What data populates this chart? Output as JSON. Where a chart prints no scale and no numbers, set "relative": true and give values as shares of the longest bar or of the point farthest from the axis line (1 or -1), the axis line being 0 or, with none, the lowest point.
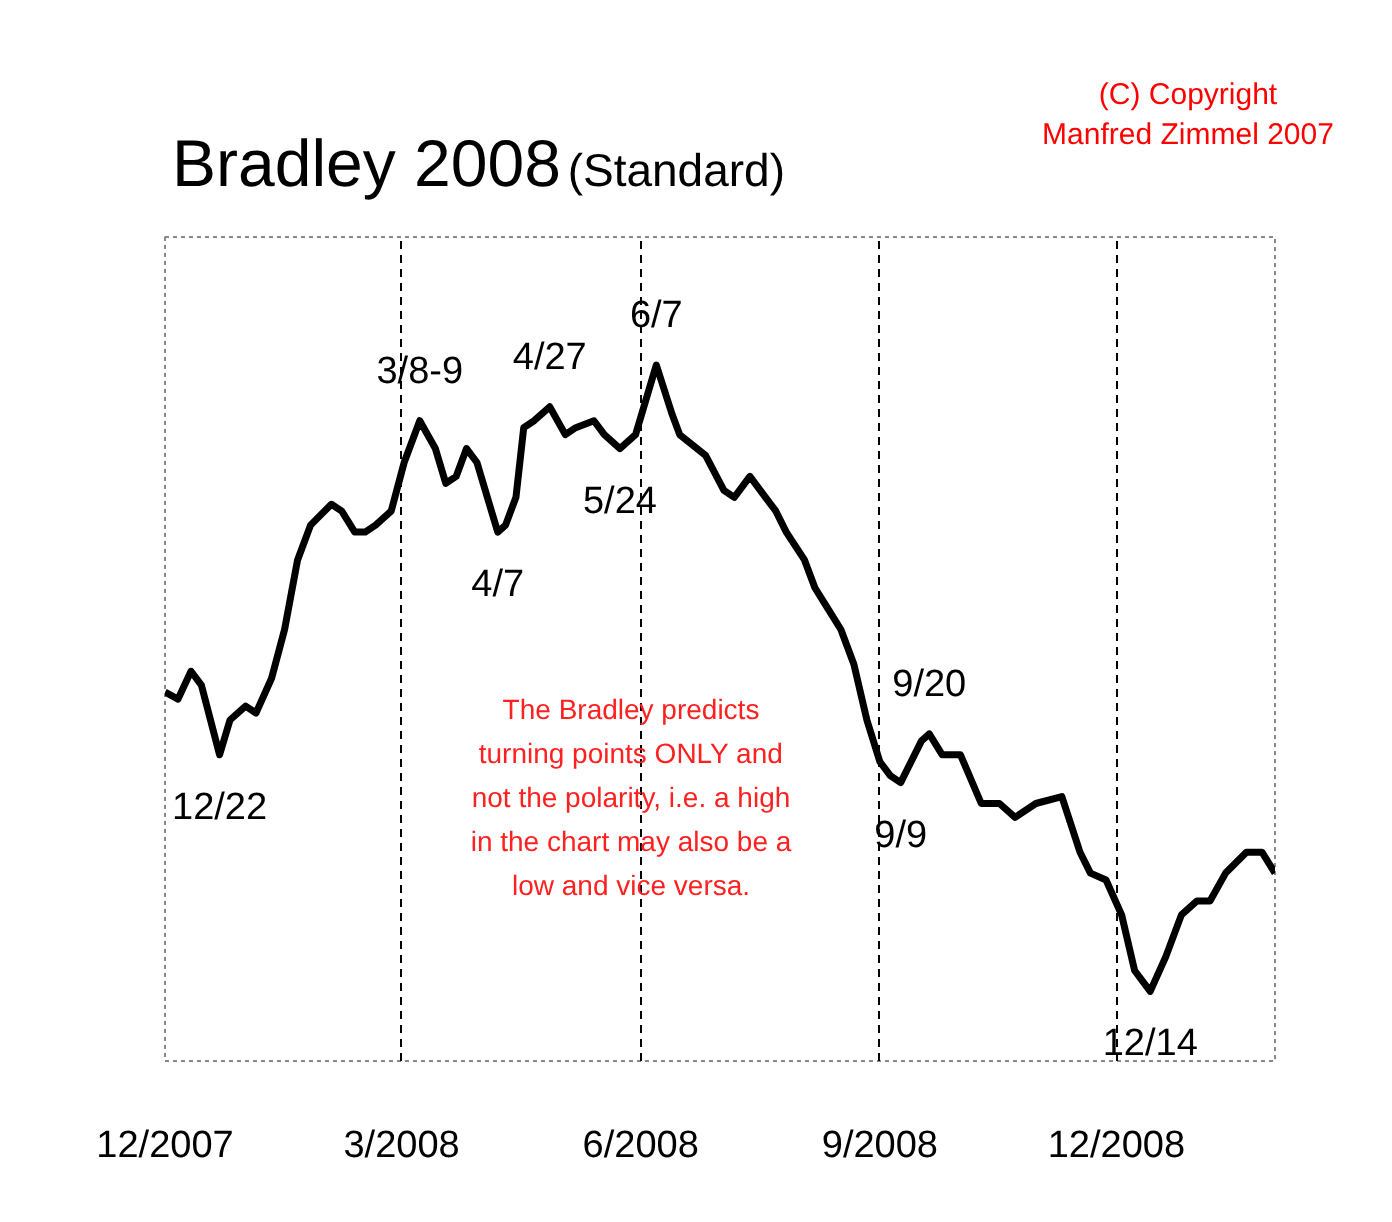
{
  "chart_data": {
    "type": "line",
    "title": "Bradley 2008",
    "subtitle": "(Standard)",
    "relative": true,
    "x": [
      "2007-12-01",
      "2007-12-06",
      "2007-12-11",
      "2007-12-15",
      "2007-12-22",
      "2007-12-26",
      "2008-01-01",
      "2008-01-05",
      "2008-01-11",
      "2008-01-16",
      "2008-01-21",
      "2008-01-26",
      "2008-02-03",
      "2008-02-07",
      "2008-02-12",
      "2008-02-16",
      "2008-02-20",
      "2008-02-26",
      "2008-03-02",
      "2008-03-08",
      "2008-03-14",
      "2008-03-18",
      "2008-03-22",
      "2008-03-26",
      "2008-03-30",
      "2008-04-07",
      "2008-04-10",
      "2008-04-14",
      "2008-04-17",
      "2008-04-21",
      "2008-04-27",
      "2008-05-03",
      "2008-05-07",
      "2008-05-14",
      "2008-05-18",
      "2008-05-24",
      "2008-05-30",
      "2008-06-07",
      "2008-06-13",
      "2008-06-16",
      "2008-06-26",
      "2008-07-03",
      "2008-07-07",
      "2008-07-13",
      "2008-07-19",
      "2008-07-23",
      "2008-07-27",
      "2008-08-03",
      "2008-08-07",
      "2008-08-12",
      "2008-08-17",
      "2008-08-22",
      "2008-08-27",
      "2008-09-01",
      "2008-09-05",
      "2008-09-09",
      "2008-09-17",
      "2008-09-20",
      "2008-09-25",
      "2008-10-02",
      "2008-10-10",
      "2008-10-17",
      "2008-10-23",
      "2008-10-31",
      "2008-11-10",
      "2008-11-17",
      "2008-11-21",
      "2008-11-27",
      "2008-12-03",
      "2008-12-08",
      "2008-12-14",
      "2008-12-20",
      "2008-12-26",
      "2009-01-01",
      "2009-01-06",
      "2009-01-12",
      "2009-01-20",
      "2009-01-26",
      "2009-01-31"
    ],
    "series": [
      {
        "color": "#000000",
        "values": [
          0.53,
          0.52,
          0.56,
          0.54,
          0.44,
          0.49,
          0.51,
          0.5,
          0.55,
          0.62,
          0.72,
          0.77,
          0.8,
          0.79,
          0.76,
          0.76,
          0.77,
          0.79,
          0.86,
          0.92,
          0.88,
          0.83,
          0.84,
          0.88,
          0.86,
          0.76,
          0.77,
          0.81,
          0.91,
          0.92,
          0.94,
          0.9,
          0.91,
          0.92,
          0.9,
          0.88,
          0.9,
          1.0,
          0.93,
          0.9,
          0.87,
          0.82,
          0.81,
          0.84,
          0.81,
          0.79,
          0.76,
          0.72,
          0.68,
          0.65,
          0.62,
          0.57,
          0.49,
          0.43,
          0.41,
          0.4,
          0.46,
          0.47,
          0.44,
          0.44,
          0.37,
          0.37,
          0.35,
          0.37,
          0.38,
          0.3,
          0.27,
          0.26,
          0.21,
          0.13,
          0.1,
          0.15,
          0.21,
          0.23,
          0.23,
          0.27,
          0.3,
          0.3,
          0.27
        ]
      }
    ],
    "xlim": [
      "2007-12-01",
      "2009-01-31"
    ],
    "xticks": [
      {
        "value": "2007-12-01",
        "label": "12/2007"
      },
      {
        "value": "2008-03-01",
        "label": "3/2008"
      },
      {
        "value": "2008-06-01",
        "label": "6/2008"
      },
      {
        "value": "2008-09-01",
        "label": "9/2008"
      },
      {
        "value": "2008-12-01",
        "label": "12/2008"
      }
    ],
    "grid": "x",
    "line_style": "solid",
    "annotations": [
      "(C) Copyright\nManfred Zimmel 2007",
      "The Bradley predicts\nturning points ONLY and\nnot the polarity, i.e. a high\nin the chart may also be a\nlow and vice versa.",
      {
        "text": "12/22",
        "x": "2007-12-22",
        "y": 0.44
      },
      {
        "text": "3/8-9",
        "x": "2008-03-08",
        "y": 0.92
      },
      {
        "text": "4/7",
        "x": "2008-04-07",
        "y": 0.76
      },
      {
        "text": "4/27",
        "x": "2008-04-27",
        "y": 0.94
      },
      {
        "text": "5/24",
        "x": "2008-05-24",
        "y": 0.88
      },
      {
        "text": "6/7",
        "x": "2008-06-07",
        "y": 1.0
      },
      {
        "text": "9/9",
        "x": "2008-09-09",
        "y": 0.4
      },
      {
        "text": "9/20",
        "x": "2008-09-20",
        "y": 0.47
      },
      {
        "text": "12/14",
        "x": "2008-12-14",
        "y": 0.1
      }
    ]
  }
}
